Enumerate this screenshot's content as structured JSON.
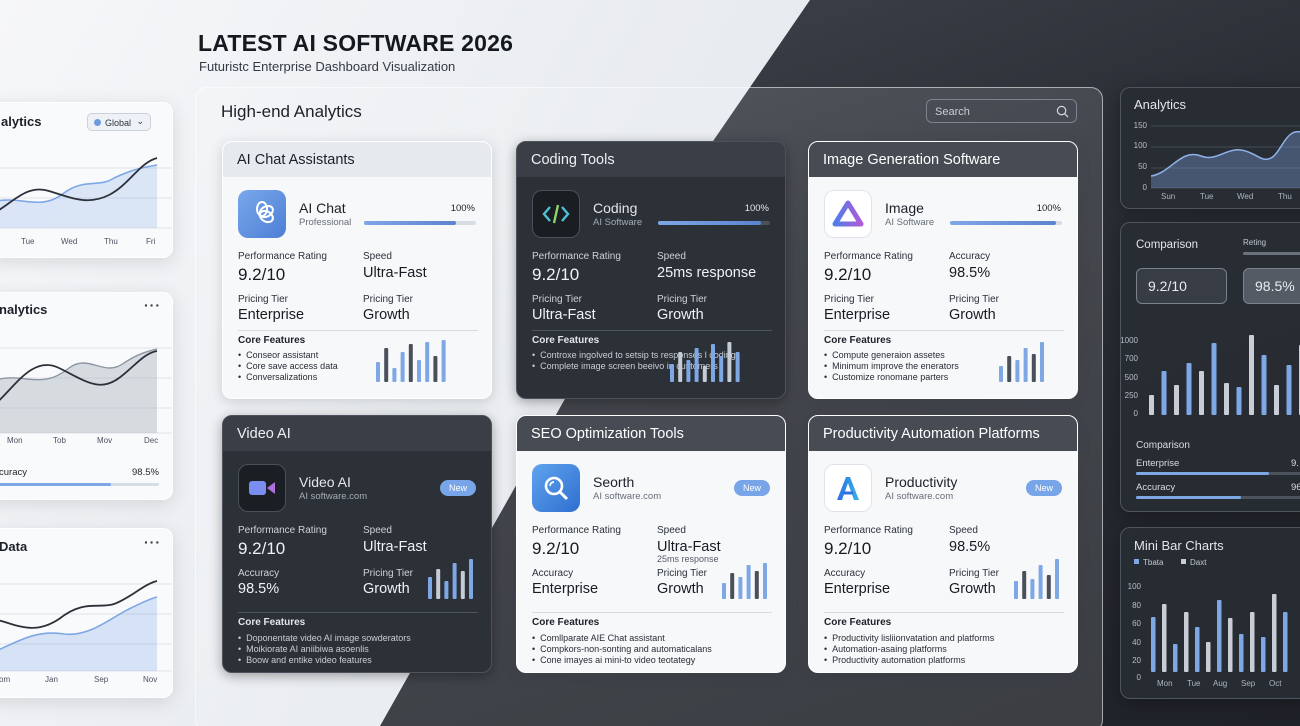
{
  "header": {
    "title": "LATEST AI SOFTWARE 2026",
    "subtitle": "Futuristc Enterprise Dashboard Visualization"
  },
  "left_panels": [
    {
      "title": "alytics",
      "control": "Global",
      "x_labels": [
        "Tue",
        "Wed",
        "Thu",
        "Fri"
      ]
    },
    {
      "title": "nalytics",
      "x_labels": [
        "Mon",
        "Tob",
        "Mov",
        "Dec"
      ],
      "metric_label": "curacy",
      "metric_value": "98.5%",
      "metric_level": 0.7
    },
    {
      "title": "Data",
      "x_labels": [
        "om",
        "Jan",
        "Sep",
        "Nov"
      ]
    }
  ],
  "main": {
    "title": "High-end Analytics",
    "search_placeholder": "Search",
    "cards": [
      {
        "header": "AI Chat Assistants",
        "name": "AI Chat",
        "sub": "Professional",
        "pct": "100%",
        "level": 0.82,
        "m1_label": "Performance Rating",
        "m1_value": "9.2/10",
        "m2_label": "Speed",
        "m2_value": "Ultra-Fast",
        "m3_label": "Pricing Tier",
        "m3_value": "Enterprise",
        "m4_label": "Pricing Tier",
        "m4_value": "Growth",
        "features_label": "Core Features",
        "features": [
          "Conseor assistant",
          "Core save access data",
          "Conversalizations"
        ],
        "icon": "openai-logo-icon"
      },
      {
        "header": "Coding Tools",
        "name": "Coding",
        "sub": "AI Software",
        "pct": "100%",
        "level": 0.92,
        "m1_label": "Performance Rating",
        "m1_value": "9.2/10",
        "m2_label": "Speed",
        "m2_value": "25ms response",
        "m3_label": "Pricing Tier",
        "m3_value": "Ultra-Fast",
        "m4_label": "Pricing Tier",
        "m4_value": "Growth",
        "features_label": "Core Features",
        "features": [
          "Controxe ingolved to setsip ts responses l coding",
          "Complete image screen beeivo in customers"
        ],
        "icon": "code-brackets-icon"
      },
      {
        "header": "Image Generation Software",
        "name": "Image",
        "sub": "AI Software",
        "pct": "100%",
        "level": 0.95,
        "m1_label": "Performance Rating",
        "m1_value": "9.2/10",
        "m2_label": "Accuracy",
        "m2_value": "98.5%",
        "m3_label": "Pricing Tier",
        "m3_value": "Enterprise",
        "m4_label": "Pricing Tier",
        "m4_value": "Growth",
        "features_label": "Core Features",
        "features": [
          "Compute generaion assetes",
          "Minimum improve the enerators",
          "Customize ronomane parters"
        ],
        "icon": "triangle-logo-icon"
      },
      {
        "header": "Video AI",
        "name": "Video AI",
        "sub": "AI software.com",
        "badge": "New",
        "m1_label": "Performance Rating",
        "m1_value": "9.2/10",
        "m2_label": "Speed",
        "m2_value": "Ultra-Fast",
        "m3_label": "Accuracy",
        "m3_value": "98.5%",
        "m4_label": "Pricing Tier",
        "m4_value": "Growth",
        "features_label": "Core Features",
        "features": [
          "Doponentate video AI image sowderators",
          "Moikiorate AI aniibiwa asoenlis",
          "Boow and entike video features"
        ],
        "icon": "video-camera-icon"
      },
      {
        "header": "SEO Optimization Tools",
        "name": "Seorth",
        "sub": "AI software.com",
        "badge": "New",
        "m1_label": "Performance Rating",
        "m1_value": "9.2/10",
        "m2_label": "Speed",
        "m2_value": "Ultra-Fast",
        "m2_extra": "25ms response",
        "m3_label": "Accuracy",
        "m3_value": "Enterprise",
        "m4_label": "Pricing Tier",
        "m4_value": "Growth",
        "features_label": "Core Features",
        "features": [
          "Comllparate AIE Chat assistant",
          "Compkors-non-sonting and automaticalans",
          "Cone imayes ai mini-to video teotategy"
        ],
        "icon": "magnifier-icon"
      },
      {
        "header": "Productivity Automation Platforms",
        "name": "Productivity",
        "sub": "AI software.com",
        "badge": "New",
        "m1_label": "Performance Rating",
        "m1_value": "9.2/10",
        "m2_label": "Speed",
        "m2_value": "98.5%",
        "m3_label": "Accuracy",
        "m3_value": "Enterprise",
        "m4_label": "Pricing Tier",
        "m4_value": "Growth",
        "features_label": "Core Features",
        "features": [
          "Productivity lisliionvatation and platforms",
          "Automation-asaing platforms",
          "Productivity automation platforms"
        ],
        "icon": "letter-a-logo-icon"
      }
    ]
  },
  "right": {
    "analytics": {
      "title": "Analytics",
      "y_labels": [
        "150",
        "100",
        "50",
        "0"
      ],
      "x_labels": [
        "Sun",
        "Tue",
        "Wed",
        "Thu"
      ]
    },
    "comparison": {
      "title": "Comparison",
      "rating_label": "Reting",
      "value1": "9.2/10",
      "value2": "98.5%",
      "y_labels": [
        "1000",
        "700",
        "500",
        "250",
        "0"
      ],
      "sub_title": "Comparison",
      "rows": [
        {
          "label": "Enterprise",
          "value": "9.",
          "level": 0.78
        },
        {
          "label": "Accuracy",
          "value": "96",
          "level": 0.62
        }
      ]
    },
    "minibar": {
      "title": "Mini Bar Charts",
      "legend": [
        "Tbata",
        "Daxt"
      ],
      "y_labels": [
        "100",
        "80",
        "60",
        "40",
        "20",
        "0"
      ],
      "x_labels": [
        "Mon",
        "Tue",
        "Aug",
        "Sep",
        "Oct"
      ]
    }
  },
  "colors": {
    "accent": "#7ea7e6",
    "dark_panel": "#2c3037",
    "light_panel": "#f7f8fa"
  }
}
